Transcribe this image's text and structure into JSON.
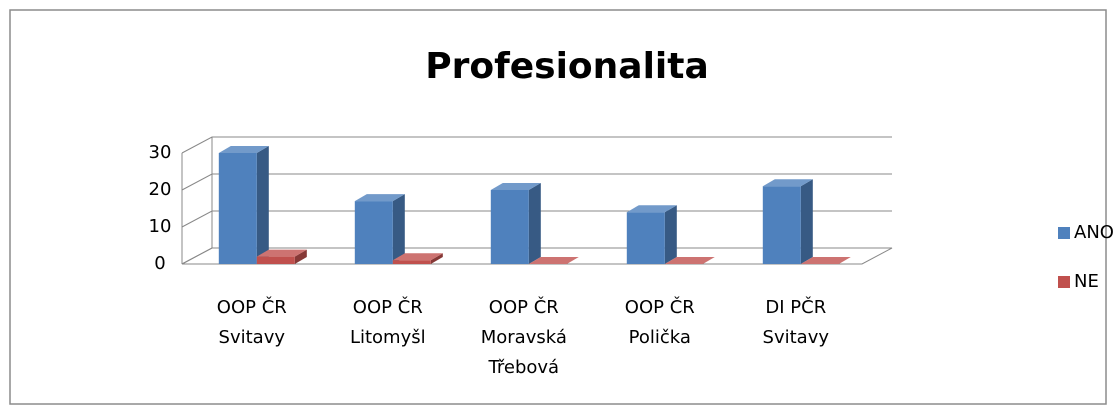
{
  "chart_data": {
    "type": "bar3d",
    "title": "Profesionalita",
    "categories": [
      [
        "OOP ČR",
        "Svitavy"
      ],
      [
        "OOP ČR",
        "Litomyšl"
      ],
      [
        "OOP ČR",
        "Moravská",
        "Třebová"
      ],
      [
        "OOP ČR",
        "Polička"
      ],
      [
        "DI PČR",
        "Svitavy"
      ]
    ],
    "series": [
      {
        "name": "ANO",
        "color": "#4f81bd",
        "values": [
          30,
          17,
          20,
          14,
          21
        ]
      },
      {
        "name": "NE",
        "color": "#c0504d",
        "values": [
          2,
          1,
          0,
          0,
          0
        ]
      }
    ],
    "ylim": [
      0,
      30
    ],
    "yticks": [
      0,
      10,
      20,
      30
    ],
    "grid": true,
    "legend": "right"
  }
}
